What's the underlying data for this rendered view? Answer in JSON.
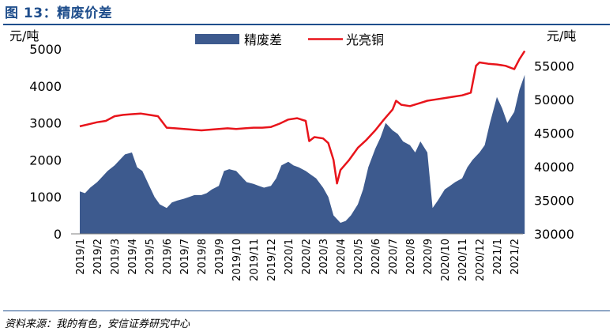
{
  "figure": {
    "title": "图 13：精废价差",
    "source": "资料来源：我的有色，安信证券研究中心"
  },
  "colors": {
    "area": "#3d5a8e",
    "line": "#e8141b",
    "title": "#1f4e8c"
  },
  "chart_data": {
    "type": "area",
    "categories": [
      "2019/1",
      "2019/2",
      "2019/3",
      "2019/4",
      "2019/5",
      "2019/6",
      "2019/7",
      "2019/8",
      "2019/9",
      "2019/10",
      "2019/11",
      "2019/12",
      "2020/1",
      "2020/2",
      "2020/3",
      "2020/4",
      "2020/5",
      "2020/6",
      "2020/7",
      "2020/8",
      "2020/9",
      "2020/10",
      "2020/11",
      "2020/12",
      "2021/1",
      "2021/2"
    ],
    "left_axis": {
      "unit": "元/吨",
      "ylim": [
        0,
        5000
      ],
      "ticks": [
        0,
        1000,
        2000,
        3000,
        4000,
        5000
      ]
    },
    "right_axis": {
      "unit": "元/吨",
      "ylim": [
        30000,
        57500
      ],
      "ticks": [
        30000,
        35000,
        40000,
        45000,
        50000,
        55000
      ]
    },
    "legend_position": "top-center",
    "series": [
      {
        "name": "精废差",
        "type": "area",
        "axis": "left",
        "points": [
          [
            0,
            1150
          ],
          [
            0.3,
            1100
          ],
          [
            0.6,
            1250
          ],
          [
            1,
            1400
          ],
          [
            1.3,
            1550
          ],
          [
            1.6,
            1700
          ],
          [
            2,
            1850
          ],
          [
            2.3,
            2000
          ],
          [
            2.6,
            2150
          ],
          [
            3,
            2200
          ],
          [
            3.3,
            1800
          ],
          [
            3.6,
            1700
          ],
          [
            4,
            1300
          ],
          [
            4.3,
            1000
          ],
          [
            4.6,
            800
          ],
          [
            5,
            700
          ],
          [
            5.3,
            850
          ],
          [
            5.6,
            900
          ],
          [
            6,
            950
          ],
          [
            6.3,
            1000
          ],
          [
            6.6,
            1050
          ],
          [
            7,
            1050
          ],
          [
            7.3,
            1100
          ],
          [
            7.6,
            1200
          ],
          [
            8,
            1300
          ],
          [
            8.3,
            1700
          ],
          [
            8.6,
            1750
          ],
          [
            9,
            1700
          ],
          [
            9.3,
            1550
          ],
          [
            9.6,
            1400
          ],
          [
            10,
            1350
          ],
          [
            10.3,
            1300
          ],
          [
            10.6,
            1250
          ],
          [
            11,
            1300
          ],
          [
            11.3,
            1500
          ],
          [
            11.6,
            1850
          ],
          [
            12,
            1950
          ],
          [
            12.3,
            1850
          ],
          [
            12.6,
            1800
          ],
          [
            13,
            1700
          ],
          [
            13.3,
            1600
          ],
          [
            13.6,
            1500
          ],
          [
            14,
            1250
          ],
          [
            14.3,
            1000
          ],
          [
            14.6,
            500
          ],
          [
            15,
            300
          ],
          [
            15.3,
            350
          ],
          [
            15.6,
            500
          ],
          [
            16,
            800
          ],
          [
            16.3,
            1200
          ],
          [
            16.6,
            1800
          ],
          [
            17,
            2300
          ],
          [
            17.3,
            2600
          ],
          [
            17.6,
            3000
          ],
          [
            18,
            2800
          ],
          [
            18.3,
            2700
          ],
          [
            18.6,
            2500
          ],
          [
            19,
            2400
          ],
          [
            19.3,
            2200
          ],
          [
            19.6,
            2500
          ],
          [
            20,
            2200
          ],
          [
            20.3,
            700
          ],
          [
            20.6,
            900
          ],
          [
            21,
            1200
          ],
          [
            21.3,
            1300
          ],
          [
            21.6,
            1400
          ],
          [
            22,
            1500
          ],
          [
            22.3,
            1800
          ],
          [
            22.6,
            2000
          ],
          [
            23,
            2200
          ],
          [
            23.3,
            2400
          ],
          [
            23.6,
            3000
          ],
          [
            24,
            3700
          ],
          [
            24.3,
            3400
          ],
          [
            24.6,
            3000
          ],
          [
            25,
            3300
          ],
          [
            25.3,
            3900
          ],
          [
            25.6,
            4300
          ]
        ]
      },
      {
        "name": "光亮铜",
        "type": "line",
        "axis": "right",
        "points": [
          [
            0,
            46000
          ],
          [
            0.5,
            46300
          ],
          [
            1,
            46600
          ],
          [
            1.5,
            46800
          ],
          [
            2,
            47500
          ],
          [
            2.5,
            47700
          ],
          [
            3,
            47800
          ],
          [
            3.5,
            47900
          ],
          [
            4,
            47700
          ],
          [
            4.5,
            47500
          ],
          [
            5,
            45800
          ],
          [
            5.5,
            45700
          ],
          [
            6,
            45600
          ],
          [
            6.5,
            45500
          ],
          [
            7,
            45400
          ],
          [
            7.5,
            45500
          ],
          [
            8,
            45600
          ],
          [
            8.5,
            45700
          ],
          [
            9,
            45600
          ],
          [
            9.5,
            45700
          ],
          [
            10,
            45800
          ],
          [
            10.5,
            45800
          ],
          [
            11,
            45900
          ],
          [
            11.5,
            46400
          ],
          [
            12,
            47000
          ],
          [
            12.5,
            47200
          ],
          [
            13,
            46800
          ],
          [
            13.2,
            43800
          ],
          [
            13.5,
            44400
          ],
          [
            14,
            44200
          ],
          [
            14.3,
            43500
          ],
          [
            14.6,
            41000
          ],
          [
            14.8,
            37500
          ],
          [
            15,
            39500
          ],
          [
            15.5,
            41000
          ],
          [
            16,
            42800
          ],
          [
            16.5,
            44000
          ],
          [
            17,
            45400
          ],
          [
            17.5,
            47000
          ],
          [
            18,
            48500
          ],
          [
            18.2,
            49800
          ],
          [
            18.5,
            49200
          ],
          [
            19,
            49000
          ],
          [
            19.5,
            49400
          ],
          [
            20,
            49800
          ],
          [
            20.5,
            50000
          ],
          [
            21,
            50200
          ],
          [
            21.5,
            50400
          ],
          [
            22,
            50600
          ],
          [
            22.5,
            51000
          ],
          [
            22.8,
            55000
          ],
          [
            23,
            55500
          ],
          [
            23.5,
            55300
          ],
          [
            24,
            55200
          ],
          [
            24.5,
            55000
          ],
          [
            25,
            54500
          ],
          [
            25.3,
            56000
          ],
          [
            25.6,
            57200
          ]
        ]
      }
    ]
  }
}
